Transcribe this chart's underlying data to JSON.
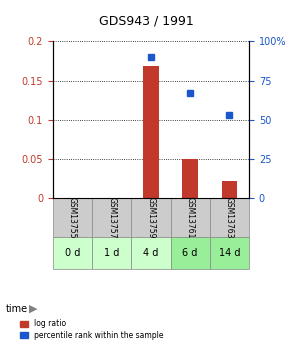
{
  "title": "GDS943 / 1991",
  "categories": [
    "GSM13755",
    "GSM13757",
    "GSM13759",
    "GSM13761",
    "GSM13763"
  ],
  "time_labels": [
    "0 d",
    "1 d",
    "4 d",
    "6 d",
    "14 d"
  ],
  "log_ratio": [
    0.0,
    0.0,
    0.168,
    0.05,
    0.022
  ],
  "percentile_rank": [
    null,
    null,
    90.0,
    67.0,
    53.0
  ],
  "left_ylim": [
    0,
    0.2
  ],
  "right_ylim": [
    0,
    100
  ],
  "left_yticks": [
    0,
    0.05,
    0.1,
    0.15,
    0.2
  ],
  "left_yticklabels": [
    "0",
    "0.05",
    "0.1",
    "0.15",
    "0.2"
  ],
  "right_yticks": [
    0,
    25,
    50,
    75,
    100
  ],
  "right_yticklabels": [
    "0",
    "25",
    "50",
    "75",
    "100%"
  ],
  "bar_color": "#c0392b",
  "scatter_color": "#1a56cc",
  "gsm_bg_color": "#cccccc",
  "time_bg_color_light": "#ccffcc",
  "time_bg_color_dark": "#99ee99",
  "bar_width": 0.4,
  "dotgrid_color": "#888888"
}
